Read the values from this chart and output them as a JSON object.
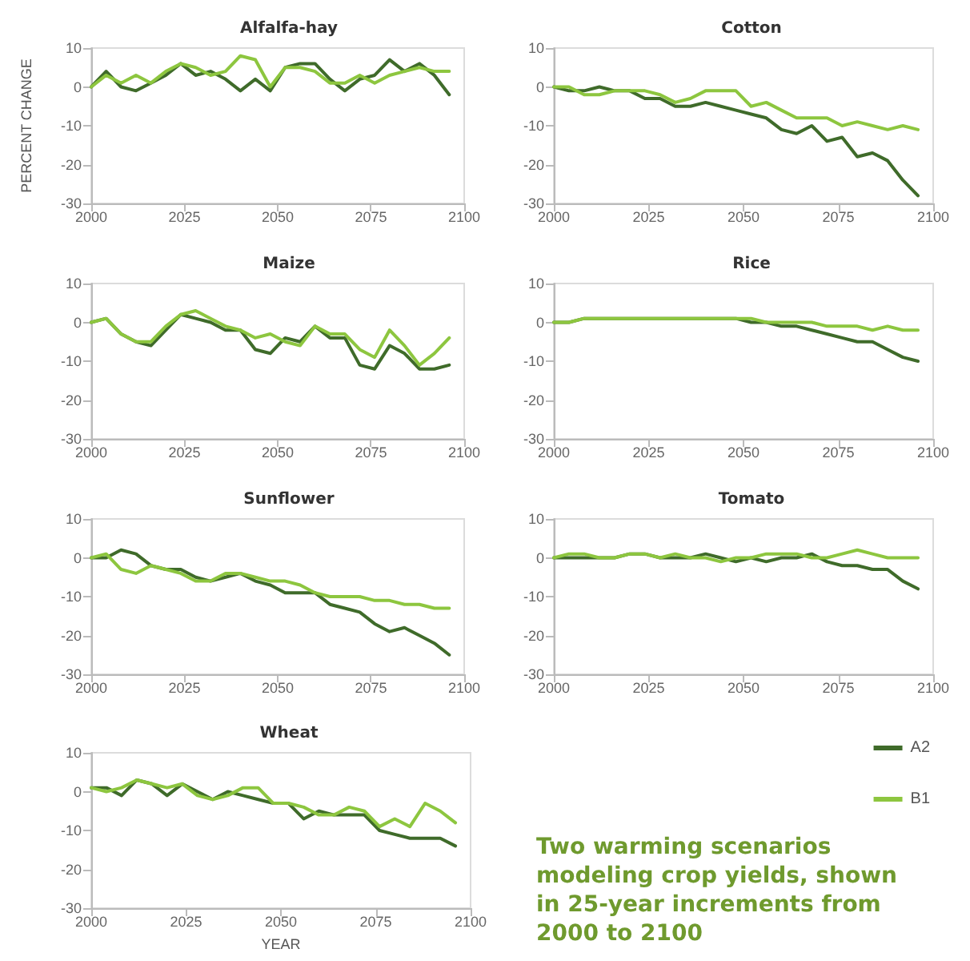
{
  "chart_data": [
    {
      "type": "line",
      "title": "Alfalfa-hay",
      "ylabel": "PERCENT CHANGE",
      "x": [
        2000,
        2004,
        2008,
        2012,
        2016,
        2020,
        2024,
        2028,
        2032,
        2036,
        2040,
        2044,
        2048,
        2052,
        2056,
        2060,
        2064,
        2068,
        2072,
        2076,
        2080,
        2084,
        2088,
        2092,
        2096
      ],
      "xlim": [
        2000,
        2100
      ],
      "xticks": [
        2000,
        2025,
        2050,
        2075,
        2100
      ],
      "ylim": [
        -30,
        10
      ],
      "yticks": [
        -30,
        -20,
        -10,
        0,
        10
      ],
      "grid": false,
      "legend": false,
      "marker": "none",
      "series": [
        {
          "color": "#3f6b2a",
          "values": [
            0,
            4,
            0,
            -1,
            1,
            3,
            6,
            3,
            4,
            2,
            -1,
            2,
            -1,
            5,
            6,
            6,
            2,
            -1,
            2,
            3,
            7,
            4,
            6,
            3,
            -2
          ]
        },
        {
          "color": "#8dc63f",
          "values": [
            0,
            3,
            1,
            3,
            1,
            4,
            6,
            5,
            3,
            4,
            8,
            7,
            0,
            5,
            5,
            4,
            1,
            1,
            3,
            1,
            3,
            4,
            5,
            4,
            4
          ]
        }
      ]
    },
    {
      "type": "line",
      "title": "Cotton",
      "x": [
        2000,
        2004,
        2008,
        2012,
        2016,
        2020,
        2024,
        2028,
        2032,
        2036,
        2040,
        2044,
        2048,
        2052,
        2056,
        2060,
        2064,
        2068,
        2072,
        2076,
        2080,
        2084,
        2088,
        2092,
        2096
      ],
      "xlim": [
        2000,
        2100
      ],
      "xticks": [
        2000,
        2025,
        2050,
        2075,
        2100
      ],
      "ylim": [
        -30,
        10
      ],
      "yticks": [
        -30,
        -20,
        -10,
        0,
        10
      ],
      "grid": false,
      "legend": false,
      "marker": "none",
      "series": [
        {
          "color": "#3f6b2a",
          "values": [
            0,
            -1,
            -1,
            0,
            -1,
            -1,
            -3,
            -3,
            -5,
            -5,
            -4,
            -5,
            -6,
            -7,
            -8,
            -11,
            -12,
            -10,
            -14,
            -13,
            -18,
            -17,
            -19,
            -24,
            -28
          ]
        },
        {
          "color": "#8dc63f",
          "values": [
            0,
            0,
            -2,
            -2,
            -1,
            -1,
            -1,
            -2,
            -4,
            -3,
            -1,
            -1,
            -1,
            -5,
            -4,
            -6,
            -8,
            -8,
            -8,
            -10,
            -9,
            -10,
            -11,
            -10,
            -11
          ]
        }
      ]
    },
    {
      "type": "line",
      "title": "Maize",
      "x": [
        2000,
        2004,
        2008,
        2012,
        2016,
        2020,
        2024,
        2028,
        2032,
        2036,
        2040,
        2044,
        2048,
        2052,
        2056,
        2060,
        2064,
        2068,
        2072,
        2076,
        2080,
        2084,
        2088,
        2092,
        2096
      ],
      "xlim": [
        2000,
        2100
      ],
      "xticks": [
        2000,
        2025,
        2050,
        2075,
        2100
      ],
      "ylim": [
        -30,
        10
      ],
      "yticks": [
        -30,
        -20,
        -10,
        0,
        10
      ],
      "grid": false,
      "legend": false,
      "marker": "none",
      "series": [
        {
          "color": "#3f6b2a",
          "values": [
            0,
            1,
            -3,
            -5,
            -6,
            -2,
            2,
            1,
            0,
            -2,
            -2,
            -7,
            -8,
            -4,
            -5,
            -1,
            -4,
            -4,
            -11,
            -12,
            -6,
            -8,
            -12,
            -12,
            -11
          ]
        },
        {
          "color": "#8dc63f",
          "values": [
            0,
            1,
            -3,
            -5,
            -5,
            -1,
            2,
            3,
            1,
            -1,
            -2,
            -4,
            -3,
            -5,
            -6,
            -1,
            -3,
            -3,
            -7,
            -9,
            -2,
            -6,
            -11,
            -8,
            -4
          ]
        }
      ]
    },
    {
      "type": "line",
      "title": "Rice",
      "x": [
        2000,
        2004,
        2008,
        2012,
        2016,
        2020,
        2024,
        2028,
        2032,
        2036,
        2040,
        2044,
        2048,
        2052,
        2056,
        2060,
        2064,
        2068,
        2072,
        2076,
        2080,
        2084,
        2088,
        2092,
        2096
      ],
      "xlim": [
        2000,
        2100
      ],
      "xticks": [
        2000,
        2025,
        2050,
        2075,
        2100
      ],
      "ylim": [
        -30,
        10
      ],
      "yticks": [
        -30,
        -20,
        -10,
        0,
        10
      ],
      "grid": false,
      "legend": false,
      "marker": "none",
      "series": [
        {
          "color": "#3f6b2a",
          "values": [
            0,
            0,
            1,
            1,
            1,
            1,
            1,
            1,
            1,
            1,
            1,
            1,
            1,
            0,
            0,
            -1,
            -1,
            -2,
            -3,
            -4,
            -5,
            -5,
            -7,
            -9,
            -10
          ]
        },
        {
          "color": "#8dc63f",
          "values": [
            0,
            0,
            1,
            1,
            1,
            1,
            1,
            1,
            1,
            1,
            1,
            1,
            1,
            1,
            0,
            0,
            0,
            0,
            -1,
            -1,
            -1,
            -2,
            -1,
            -2,
            -2
          ]
        }
      ]
    },
    {
      "type": "line",
      "title": "Sunflower",
      "x": [
        2000,
        2004,
        2008,
        2012,
        2016,
        2020,
        2024,
        2028,
        2032,
        2036,
        2040,
        2044,
        2048,
        2052,
        2056,
        2060,
        2064,
        2068,
        2072,
        2076,
        2080,
        2084,
        2088,
        2092,
        2096
      ],
      "xlim": [
        2000,
        2100
      ],
      "xticks": [
        2000,
        2025,
        2050,
        2075,
        2100
      ],
      "ylim": [
        -30,
        10
      ],
      "yticks": [
        -30,
        -20,
        -10,
        0,
        10
      ],
      "grid": false,
      "legend": false,
      "marker": "none",
      "series": [
        {
          "color": "#3f6b2a",
          "values": [
            0,
            0,
            2,
            1,
            -2,
            -3,
            -3,
            -5,
            -6,
            -5,
            -4,
            -6,
            -7,
            -9,
            -9,
            -9,
            -12,
            -13,
            -14,
            -17,
            -19,
            -18,
            -20,
            -22,
            -25
          ]
        },
        {
          "color": "#8dc63f",
          "values": [
            0,
            1,
            -3,
            -4,
            -2,
            -3,
            -4,
            -6,
            -6,
            -4,
            -4,
            -5,
            -6,
            -6,
            -7,
            -9,
            -10,
            -10,
            -10,
            -11,
            -11,
            -12,
            -12,
            -13,
            -13
          ]
        }
      ]
    },
    {
      "type": "line",
      "title": "Tomato",
      "x": [
        2000,
        2004,
        2008,
        2012,
        2016,
        2020,
        2024,
        2028,
        2032,
        2036,
        2040,
        2044,
        2048,
        2052,
        2056,
        2060,
        2064,
        2068,
        2072,
        2076,
        2080,
        2084,
        2088,
        2092,
        2096
      ],
      "xlim": [
        2000,
        2100
      ],
      "xticks": [
        2000,
        2025,
        2050,
        2075,
        2100
      ],
      "ylim": [
        -30,
        10
      ],
      "yticks": [
        -30,
        -20,
        -10,
        0,
        10
      ],
      "grid": false,
      "legend": false,
      "marker": "none",
      "series": [
        {
          "color": "#3f6b2a",
          "values": [
            0,
            0,
            0,
            0,
            0,
            1,
            1,
            0,
            0,
            0,
            1,
            0,
            -1,
            0,
            -1,
            0,
            0,
            1,
            -1,
            -2,
            -2,
            -3,
            -3,
            -6,
            -8
          ]
        },
        {
          "color": "#8dc63f",
          "values": [
            0,
            1,
            1,
            0,
            0,
            1,
            1,
            0,
            1,
            0,
            0,
            -1,
            0,
            0,
            1,
            1,
            1,
            0,
            0,
            1,
            2,
            1,
            0,
            0,
            0
          ]
        }
      ]
    },
    {
      "type": "line",
      "title": "Wheat",
      "xlabel": "YEAR",
      "x": [
        2000,
        2004,
        2008,
        2012,
        2016,
        2020,
        2024,
        2028,
        2032,
        2036,
        2040,
        2044,
        2048,
        2052,
        2056,
        2060,
        2064,
        2068,
        2072,
        2076,
        2080,
        2084,
        2088,
        2092,
        2096
      ],
      "xlim": [
        2000,
        2100
      ],
      "xticks": [
        2000,
        2025,
        2050,
        2075,
        2100
      ],
      "ylim": [
        -30,
        10
      ],
      "yticks": [
        -30,
        -20,
        -10,
        0,
        10
      ],
      "grid": false,
      "legend": "right",
      "marker": "none",
      "annotations": [
        "Two warming scenarios modeling crop yields, shown in 25-year increments from 2000 to 2100"
      ],
      "series": [
        {
          "name": "A2",
          "color": "#3f6b2a",
          "values": [
            1,
            1,
            -1,
            3,
            2,
            -1,
            2,
            0,
            -2,
            0,
            -1,
            -2,
            -3,
            -3,
            -7,
            -5,
            -6,
            -6,
            -6,
            -10,
            -11,
            -12,
            -12,
            -12,
            -14
          ]
        },
        {
          "name": "B1",
          "color": "#8dc63f",
          "values": [
            1,
            0,
            1,
            3,
            2,
            1,
            2,
            -1,
            -2,
            -1,
            1,
            1,
            -3,
            -3,
            -4,
            -6,
            -6,
            -4,
            -5,
            -9,
            -7,
            -9,
            -3,
            -5,
            -8
          ]
        }
      ]
    }
  ]
}
